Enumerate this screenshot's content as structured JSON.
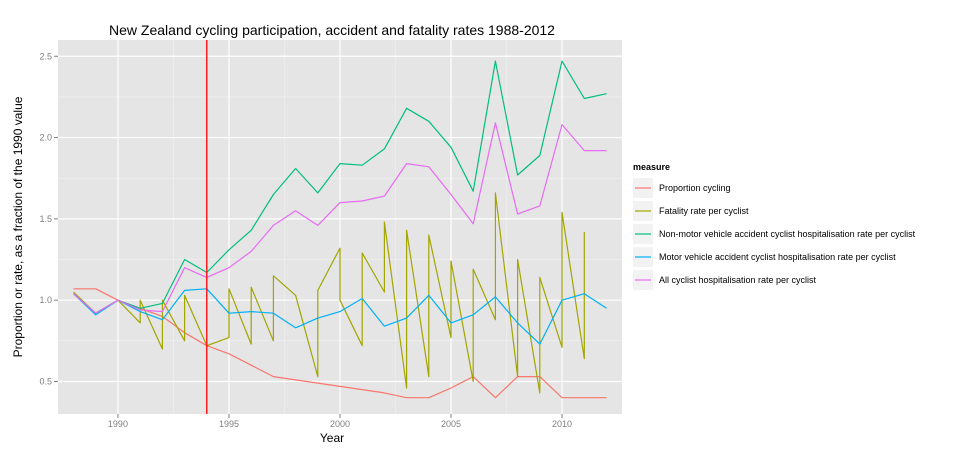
{
  "chart_data": {
    "type": "line",
    "title": "New Zealand cycling participation, accident and fatality rates 1988-2012",
    "xlabel": "Year",
    "ylabel": "Proportion or rate, as a fraction of the 1990 value",
    "xlim": [
      1987.3,
      2012.7
    ],
    "ylim": [
      0.3,
      2.6
    ],
    "x_ticks": [
      1990,
      1995,
      2000,
      2005,
      2010
    ],
    "y_ticks": [
      0.5,
      1.0,
      1.5,
      2.0,
      2.5
    ],
    "y_tick_labels": [
      "0.5",
      "1.0",
      "1.5",
      "2.0",
      "2.5"
    ],
    "grid": true,
    "legend": {
      "title": "measure",
      "position": "right"
    },
    "vline": {
      "x": 1994,
      "color": "#ff0000"
    },
    "series": [
      {
        "name": "Proportion cycling",
        "color": "#F8766D",
        "points": [
          [
            1988,
            1.07
          ],
          [
            1989,
            1.07
          ],
          [
            1990,
            1.0
          ],
          [
            1991,
            0.95
          ],
          [
            1992,
            0.9
          ],
          [
            1993,
            0.8
          ],
          [
            1994,
            0.72
          ],
          [
            1995,
            0.67
          ],
          [
            1996,
            0.6
          ],
          [
            1997,
            0.53
          ],
          [
            1998,
            0.51
          ],
          [
            1999,
            0.49
          ],
          [
            2000,
            0.47
          ],
          [
            2001,
            0.45
          ],
          [
            2002,
            0.43
          ],
          [
            2003,
            0.4
          ],
          [
            2004,
            0.4
          ],
          [
            2005,
            0.46
          ],
          [
            2006,
            0.53
          ],
          [
            2007,
            0.4
          ],
          [
            2008,
            0.53
          ],
          [
            2009,
            0.53
          ],
          [
            2010,
            0.4
          ],
          [
            2011,
            0.4
          ],
          [
            2012,
            0.4
          ]
        ]
      },
      {
        "name": "Fatality rate per cyclist",
        "color": "#A3A500",
        "points": [
          [
            1988,
            1.05
          ],
          [
            1989,
            0.92
          ],
          [
            1990,
            1.0
          ],
          [
            1991,
            0.86
          ],
          [
            1991,
            1.0
          ],
          [
            1992,
            0.7
          ],
          [
            1992,
            1.0
          ],
          [
            1993,
            0.75
          ],
          [
            1993,
            1.03
          ],
          [
            1994,
            0.72
          ],
          [
            1995,
            0.77
          ],
          [
            1995,
            1.07
          ],
          [
            1996,
            0.73
          ],
          [
            1996,
            1.08
          ],
          [
            1997,
            0.75
          ],
          [
            1997,
            1.15
          ],
          [
            1998,
            1.03
          ],
          [
            1999,
            0.53
          ],
          [
            1999,
            1.06
          ],
          [
            2000,
            1.32
          ],
          [
            2000,
            1.0
          ],
          [
            2001,
            0.72
          ],
          [
            2001,
            1.29
          ],
          [
            2002,
            1.05
          ],
          [
            2002,
            1.48
          ],
          [
            2003,
            0.46
          ],
          [
            2003,
            1.43
          ],
          [
            2004,
            0.53
          ],
          [
            2004,
            1.4
          ],
          [
            2005,
            0.77
          ],
          [
            2005,
            1.24
          ],
          [
            2006,
            0.5
          ],
          [
            2006,
            1.19
          ],
          [
            2007,
            0.88
          ],
          [
            2007,
            1.66
          ],
          [
            2008,
            0.53
          ],
          [
            2008,
            1.25
          ],
          [
            2009,
            0.43
          ],
          [
            2009,
            1.14
          ],
          [
            2010,
            0.71
          ],
          [
            2010,
            1.54
          ],
          [
            2011,
            0.64
          ],
          [
            2011,
            1.42
          ]
        ]
      },
      {
        "name": "Non-motor vehicle accident cyclist hospitalisation rate per cyclist",
        "color": "#00BF7D",
        "points": [
          [
            1988,
            1.04
          ],
          [
            1989,
            0.92
          ],
          [
            1990,
            1.0
          ],
          [
            1991,
            0.95
          ],
          [
            1992,
            0.98
          ],
          [
            1993,
            1.25
          ],
          [
            1994,
            1.17
          ],
          [
            1995,
            1.31
          ],
          [
            1996,
            1.43
          ],
          [
            1997,
            1.65
          ],
          [
            1998,
            1.81
          ],
          [
            1999,
            1.66
          ],
          [
            2000,
            1.84
          ],
          [
            2001,
            1.83
          ],
          [
            2002,
            1.93
          ],
          [
            2003,
            2.18
          ],
          [
            2004,
            2.1
          ],
          [
            2005,
            1.94
          ],
          [
            2006,
            1.67
          ],
          [
            2007,
            2.47
          ],
          [
            2008,
            1.77
          ],
          [
            2009,
            1.89
          ],
          [
            2010,
            2.47
          ],
          [
            2011,
            2.24
          ],
          [
            2012,
            2.27
          ]
        ]
      },
      {
        "name": "Motor vehicle accident cyclist hospitalisation rate per cyclist",
        "color": "#00B0F6",
        "points": [
          [
            1988,
            1.04
          ],
          [
            1989,
            0.91
          ],
          [
            1990,
            1.0
          ],
          [
            1991,
            0.93
          ],
          [
            1992,
            0.88
          ],
          [
            1993,
            1.06
          ],
          [
            1994,
            1.07
          ],
          [
            1995,
            0.92
          ],
          [
            1996,
            0.93
          ],
          [
            1997,
            0.92
          ],
          [
            1998,
            0.83
          ],
          [
            1999,
            0.89
          ],
          [
            2000,
            0.93
          ],
          [
            2001,
            1.01
          ],
          [
            2002,
            0.84
          ],
          [
            2003,
            0.89
          ],
          [
            2004,
            1.03
          ],
          [
            2005,
            0.86
          ],
          [
            2006,
            0.91
          ],
          [
            2007,
            1.02
          ],
          [
            2008,
            0.86
          ],
          [
            2009,
            0.73
          ],
          [
            2010,
            1.0
          ],
          [
            2011,
            1.04
          ],
          [
            2012,
            0.95
          ]
        ]
      },
      {
        "name": "All cyclist hospitalisation rate per cyclist",
        "color": "#E76BF3",
        "points": [
          [
            1988,
            1.04
          ],
          [
            1989,
            0.92
          ],
          [
            1990,
            1.0
          ],
          [
            1991,
            0.94
          ],
          [
            1992,
            0.93
          ],
          [
            1993,
            1.2
          ],
          [
            1994,
            1.14
          ],
          [
            1995,
            1.2
          ],
          [
            1996,
            1.3
          ],
          [
            1997,
            1.46
          ],
          [
            1998,
            1.55
          ],
          [
            1999,
            1.46
          ],
          [
            2000,
            1.6
          ],
          [
            2001,
            1.61
          ],
          [
            2002,
            1.64
          ],
          [
            2003,
            1.84
          ],
          [
            2004,
            1.82
          ],
          [
            2005,
            1.65
          ],
          [
            2006,
            1.47
          ],
          [
            2007,
            2.09
          ],
          [
            2008,
            1.53
          ],
          [
            2009,
            1.58
          ],
          [
            2010,
            2.08
          ],
          [
            2011,
            1.92
          ],
          [
            2012,
            1.92
          ]
        ]
      }
    ]
  }
}
